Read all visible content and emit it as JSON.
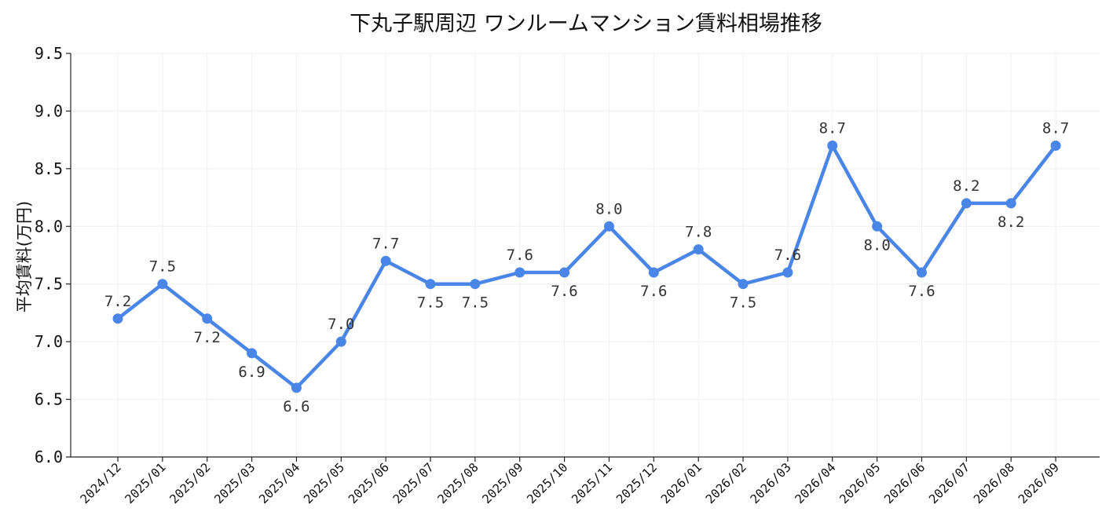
{
  "chart_data": {
    "type": "line",
    "title": "下丸子駅周辺 ワンルームマンション賃料相場推移",
    "xlabel": "",
    "ylabel": "平均賃料(万円)",
    "ylim": [
      6.0,
      9.5
    ],
    "yticks": [
      "6.0",
      "6.5",
      "7.0",
      "7.5",
      "8.0",
      "8.5",
      "9.0",
      "9.5"
    ],
    "grid": true,
    "color": "#4a86e8",
    "categories": [
      "2024/12",
      "2025/01",
      "2025/02",
      "2025/03",
      "2025/04",
      "2025/05",
      "2025/06",
      "2025/07",
      "2025/08",
      "2025/09",
      "2025/10",
      "2025/11",
      "2025/12",
      "2026/01",
      "2026/02",
      "2026/03",
      "2026/04",
      "2026/05",
      "2026/06",
      "2026/07",
      "2026/08",
      "2026/09"
    ],
    "series": [
      {
        "values": [
          7.2,
          7.5,
          7.2,
          6.9,
          6.6,
          7.0,
          7.7,
          7.5,
          7.5,
          7.6,
          7.6,
          8.0,
          7.6,
          7.8,
          7.5,
          7.6,
          8.7,
          8.0,
          7.6,
          8.2,
          8.2,
          8.7
        ],
        "labels": [
          "7.2",
          "7.5",
          "7.2",
          "6.9",
          "6.6",
          "7.0",
          "7.7",
          "7.5",
          "7.5",
          "7.6",
          "7.6",
          "8.0",
          "7.6",
          "7.8",
          "7.5",
          "7.6",
          "8.7",
          "8.0",
          "7.6",
          "8.2",
          "8.2",
          "8.7"
        ]
      }
    ]
  }
}
